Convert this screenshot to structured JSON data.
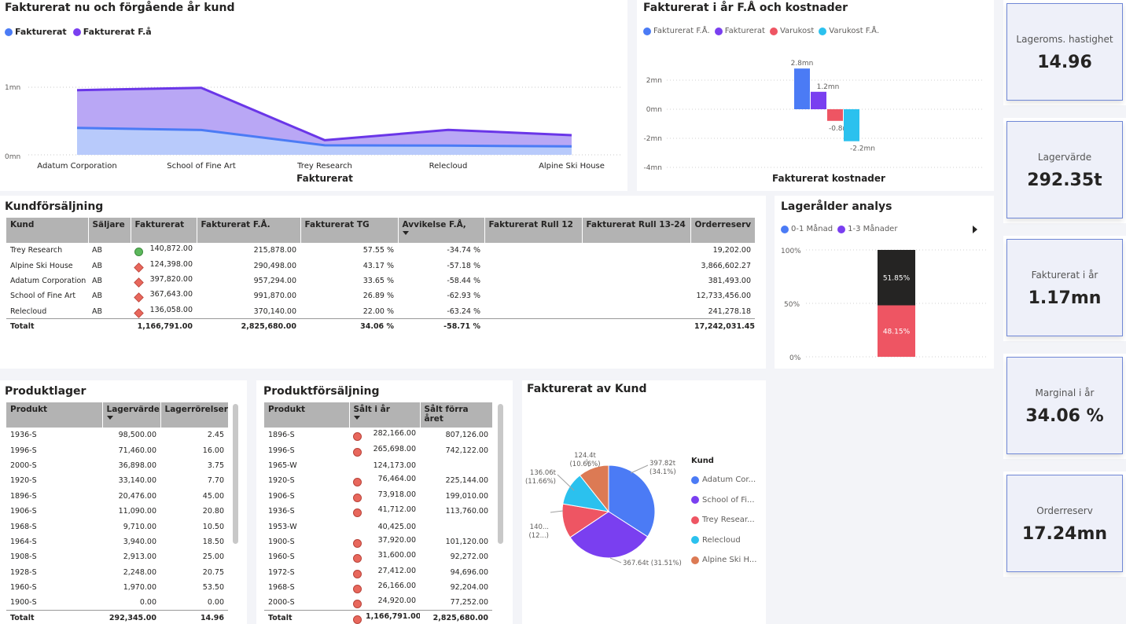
{
  "area_panel": {
    "title": "Fakturerat nu och förgående år kund",
    "xlabel": "Fakturerat",
    "legend": [
      {
        "name": "Fakturerat",
        "color": "#4b7bf5"
      },
      {
        "name": "Fakturerat F.å",
        "color": "#7a3ff0"
      }
    ],
    "yticks": [
      "1mn",
      "0mn"
    ]
  },
  "bar_panel": {
    "title": "Fakturerat i år F.Å och kostnader",
    "xlabel": "Fakturerat kostnader",
    "legend": [
      {
        "name": "Fakturerat F.Å.",
        "color": "#4b7bf5"
      },
      {
        "name": "Fakturerat",
        "color": "#7a3ff0"
      },
      {
        "name": "Varukost",
        "color": "#ee5563"
      },
      {
        "name": "Varukost F.Å.",
        "color": "#2bc1ee"
      }
    ],
    "yticks": [
      "2mn",
      "0mn",
      "-2mn",
      "-4mn"
    ]
  },
  "age_panel": {
    "title": "Lagerålder analys",
    "legend": [
      {
        "name": "0-1 Månad",
        "color": "#4b7bf5"
      },
      {
        "name": "1-3 Månader",
        "color": "#7a3ff0"
      }
    ],
    "yticks": [
      "100%",
      "50%",
      "0%"
    ]
  },
  "pie_panel": {
    "title": "Fakturerat av Kund",
    "legend_title": "Kund",
    "legend": [
      {
        "name": "Adatum Cor...",
        "color": "#4b7bf5"
      },
      {
        "name": "School of Fi...",
        "color": "#7a3ff0"
      },
      {
        "name": "Trey Resear...",
        "color": "#ee5563"
      },
      {
        "name": "Relecloud",
        "color": "#2bc1ee"
      },
      {
        "name": "Alpine Ski H...",
        "color": "#dc7a54"
      }
    ]
  },
  "chart_data": [
    {
      "type": "area",
      "title": "Fakturerat nu och förgående år kund",
      "xlabel": "Fakturerat",
      "categories": [
        "Adatum Corporation",
        "School of Fine Art",
        "Trey Research",
        "Relecloud",
        "Alpine Ski House"
      ],
      "series": [
        {
          "name": "Fakturerat",
          "values": [
            397820,
            367643,
            140872,
            136058,
            124398
          ]
        },
        {
          "name": "Fakturerat F.å",
          "values": [
            957294,
            991870,
            215878,
            370140,
            290498
          ]
        }
      ],
      "ylim": [
        0,
        1100000
      ],
      "grid": true,
      "legend": "top-left"
    },
    {
      "type": "bar",
      "title": "Fakturerat i år F.Å och kostnader",
      "xlabel": "Fakturerat kostnader",
      "categories": [
        "Fakturerat F.Å.",
        "Fakturerat",
        "Varukost",
        "Varukost F.Å."
      ],
      "values": [
        2.8,
        1.2,
        -0.8,
        -2.2
      ],
      "data_labels": [
        "2.8mn",
        "1.2mn",
        "-0.8mn",
        "-2.2mn"
      ],
      "ylim": [
        -4,
        3
      ],
      "grid": true,
      "legend": "top-left"
    },
    {
      "type": "bar",
      "title": "Lagerålder analys",
      "stacked": true,
      "series": [
        {
          "name": "0-1 Månad",
          "values": [
            48.15
          ]
        },
        {
          "name": "1-3 Månader",
          "values": [
            51.85
          ]
        }
      ],
      "data_labels": [
        "48.15%",
        "51.85%"
      ],
      "ylim": [
        0,
        100
      ]
    },
    {
      "type": "pie",
      "title": "Fakturerat av Kund",
      "categories": [
        "Adatum Cor...",
        "School of Fi...",
        "Trey Resear...",
        "Relecloud",
        "Alpine Ski H..."
      ],
      "values": [
        397.82,
        367.64,
        140.87,
        136.06,
        124.4
      ],
      "data_labels": [
        "397.82t\n(34.1%)",
        "367.64t (31.51%)",
        "140...\n(12...)",
        "136.06t\n(11.66%)",
        "124.4t\n(10.66%)"
      ],
      "legend": "right"
    }
  ],
  "kund": {
    "title": "Kundförsäljning",
    "columns": [
      "Kund",
      "Säljare",
      "Fakturerat",
      "Fakturerat F.Å.",
      "Fakturerat TG",
      "Avvikelse F.Å,",
      "Fakturerat Rull 12",
      "Fakturerat Rull 13-24",
      "Orderreserv"
    ],
    "rows": [
      {
        "kund": "Trey Research",
        "saljare": "AB",
        "ind": "green",
        "fakt": "140,872.00",
        "fa": "215,878.00",
        "tg": "57.55 %",
        "avv": "-34.74 %",
        "r12": "",
        "r24": "",
        "order": "19,202.00"
      },
      {
        "kund": "Alpine Ski House",
        "saljare": "AB",
        "ind": "red-diamond",
        "fakt": "124,398.00",
        "fa": "290,498.00",
        "tg": "43.17 %",
        "avv": "-57.18 %",
        "r12": "",
        "r24": "",
        "order": "3,866,602.27"
      },
      {
        "kund": "Adatum Corporation",
        "saljare": "AB",
        "ind": "red-diamond",
        "fakt": "397,820.00",
        "fa": "957,294.00",
        "tg": "33.65 %",
        "avv": "-58.44 %",
        "r12": "",
        "r24": "",
        "order": "381,493.00"
      },
      {
        "kund": "School of Fine Art",
        "saljare": "AB",
        "ind": "red-diamond",
        "fakt": "367,643.00",
        "fa": "991,870.00",
        "tg": "26.89 %",
        "avv": "-62.93 %",
        "r12": "",
        "r24": "",
        "order": "12,733,456.00"
      },
      {
        "kund": "Relecloud",
        "saljare": "AB",
        "ind": "red-diamond",
        "fakt": "136,058.00",
        "fa": "370,140.00",
        "tg": "22.00 %",
        "avv": "-63.24 %",
        "r12": "",
        "r24": "",
        "order": "241,278.18"
      }
    ],
    "total": {
      "kund": "Totalt",
      "fakt": "1,166,791.00",
      "fa": "2,825,680.00",
      "tg": "34.06 %",
      "avv": "-58.71 %",
      "order": "17,242,031.45"
    }
  },
  "lager": {
    "title": "Produktlager",
    "columns": [
      "Produkt",
      "Lagervärde",
      "Lagerrörelser"
    ],
    "rows": [
      [
        "1936-S",
        "98,500.00",
        "2.45"
      ],
      [
        "1996-S",
        "71,460.00",
        "16.00"
      ],
      [
        "2000-S",
        "36,898.00",
        "3.75"
      ],
      [
        "1920-S",
        "33,140.00",
        "7.70"
      ],
      [
        "1896-S",
        "20,476.00",
        "45.00"
      ],
      [
        "1906-S",
        "11,090.00",
        "20.80"
      ],
      [
        "1968-S",
        "9,710.00",
        "10.50"
      ],
      [
        "1964-S",
        "3,940.00",
        "18.50"
      ],
      [
        "1908-S",
        "2,913.00",
        "25.00"
      ],
      [
        "1928-S",
        "2,248.00",
        "20.75"
      ],
      [
        "1960-S",
        "1,970.00",
        "53.50"
      ],
      [
        "1900-S",
        "0.00",
        "0.00"
      ]
    ],
    "total": [
      "Totalt",
      "292,345.00",
      "14.96"
    ]
  },
  "prodsale": {
    "title": "Produktförsäljning",
    "columns": [
      "Produkt",
      "Sålt i år",
      "Sålt förra året"
    ],
    "rows": [
      {
        "p": "1896-S",
        "ind": true,
        "a": "282,166.00",
        "b": "807,126.00"
      },
      {
        "p": "1996-S",
        "ind": true,
        "a": "265,698.00",
        "b": "742,122.00"
      },
      {
        "p": "1965-W",
        "ind": false,
        "a": "124,173.00",
        "b": ""
      },
      {
        "p": "1920-S",
        "ind": true,
        "a": "76,464.00",
        "b": "225,144.00"
      },
      {
        "p": "1906-S",
        "ind": true,
        "a": "73,918.00",
        "b": "199,010.00"
      },
      {
        "p": "1936-S",
        "ind": true,
        "a": "41,712.00",
        "b": "113,760.00"
      },
      {
        "p": "1953-W",
        "ind": false,
        "a": "40,425.00",
        "b": ""
      },
      {
        "p": "1900-S",
        "ind": true,
        "a": "37,920.00",
        "b": "101,120.00"
      },
      {
        "p": "1960-S",
        "ind": true,
        "a": "31,600.00",
        "b": "92,272.00"
      },
      {
        "p": "1972-S",
        "ind": true,
        "a": "27,412.00",
        "b": "94,696.00"
      },
      {
        "p": "1968-S",
        "ind": true,
        "a": "26,166.00",
        "b": "92,204.00"
      },
      {
        "p": "2000-S",
        "ind": true,
        "a": "24,920.00",
        "b": "77,252.00"
      }
    ],
    "total": {
      "p": "Totalt",
      "a": "1,166,791.00",
      "b": "2,825,680.00"
    }
  },
  "kpis": [
    {
      "label": "Lageroms. hastighet",
      "value": "14.96"
    },
    {
      "label": "Lagervärde",
      "value": "292.35t"
    },
    {
      "label": "Fakturerat i år",
      "value": "1.17mn"
    },
    {
      "label": "Marginal i år",
      "value": "34.06 %"
    },
    {
      "label": "Orderreserv",
      "value": "17.24mn"
    }
  ]
}
